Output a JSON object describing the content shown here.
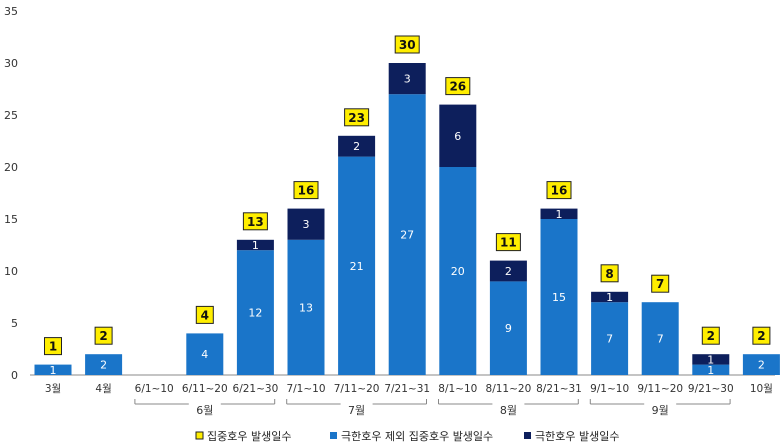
{
  "chart_data": {
    "type": "bar",
    "stacked": true,
    "categories": [
      "3월",
      "4월",
      "6/1~10",
      "6/11~20",
      "6/21~30",
      "7/1~10",
      "7/11~20",
      "7/21~31",
      "8/1~10",
      "8/11~20",
      "8/21~31",
      "9/1~10",
      "9/11~20",
      "9/21~30",
      "10월"
    ],
    "month_groups": [
      {
        "label": "6월",
        "from": 2,
        "to": 4
      },
      {
        "label": "7월",
        "from": 5,
        "to": 7
      },
      {
        "label": "8월",
        "from": 8,
        "to": 10
      },
      {
        "label": "9월",
        "from": 11,
        "to": 13
      }
    ],
    "series": [
      {
        "name": "극한호우 제외 집중호우 발생일수",
        "color": "#1a75c9",
        "values": [
          1,
          2,
          0,
          4,
          12,
          13,
          21,
          27,
          20,
          9,
          15,
          7,
          7,
          1,
          2
        ]
      },
      {
        "name": "극한호우 발생일수",
        "color": "#0d1f5c",
        "values": [
          0,
          0,
          0,
          0,
          1,
          3,
          2,
          3,
          6,
          2,
          1,
          1,
          0,
          1,
          0
        ]
      }
    ],
    "totals": {
      "name": "집중호우 발생일수",
      "color": "#ffee00",
      "values": [
        1,
        2,
        0,
        4,
        13,
        16,
        23,
        30,
        26,
        11,
        16,
        8,
        7,
        2,
        2
      ]
    },
    "ylim": [
      0,
      35
    ],
    "yticks": [
      0,
      5,
      10,
      15,
      20,
      25,
      30,
      35
    ],
    "grid": false,
    "legend_position": "bottom"
  }
}
